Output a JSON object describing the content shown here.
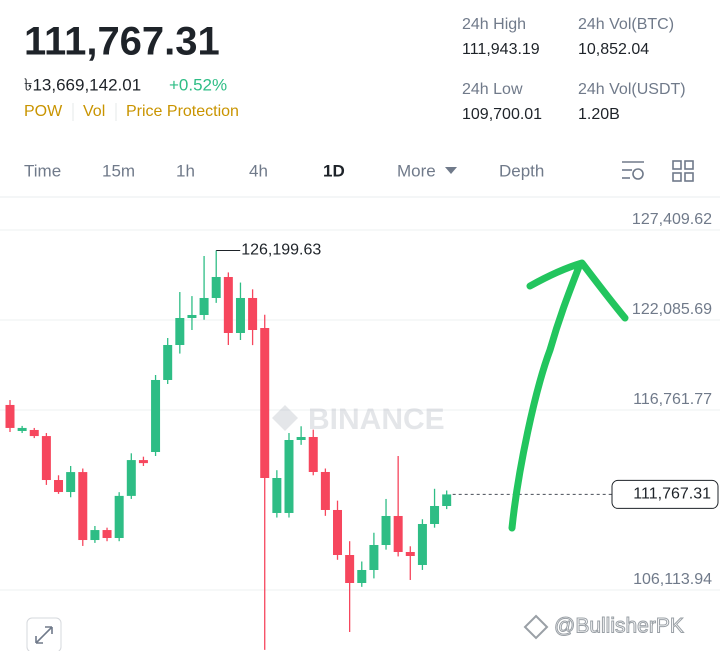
{
  "header": {
    "price": "111,767.31",
    "local_price": "৳13,669,142.01",
    "change": "+0.52%",
    "tags": [
      "POW",
      "Vol",
      "Price Protection"
    ],
    "stats": [
      {
        "label": "24h High",
        "value": "111,943.19"
      },
      {
        "label": "24h Vol(BTC)",
        "value": "10,852.04"
      },
      {
        "label": "24h Low",
        "value": "109,700.01"
      },
      {
        "label": "24h Vol(USDT)",
        "value": "1.20B"
      }
    ]
  },
  "tabs": [
    "Time",
    "15m",
    "1h",
    "4h",
    "1D",
    "More",
    "Depth"
  ],
  "active_tab": "1D",
  "watermark": "BINANCE",
  "credit": "@BullisherPK",
  "chart_data": {
    "type": "candlestick",
    "ylim": [
      102505,
      129362
    ],
    "yticks": [
      {
        "value": 127409.62,
        "label": "127,409.62"
      },
      {
        "value": 122085.69,
        "label": "122,085.69"
      },
      {
        "value": 116761.77,
        "label": "116,761.77"
      },
      {
        "value": 106113.94,
        "label": "106,113.94"
      }
    ],
    "grid": true,
    "up_color": "#2ebd85",
    "down_color": "#f6465d",
    "last_price": {
      "value": 111767.31,
      "label": "111,767.31"
    },
    "high_annotation": {
      "value": 126199.63,
      "label": "126,199.63"
    },
    "open": [
      117060,
      115520,
      115580,
      115220,
      112620,
      111910,
      113090,
      109070,
      109660,
      109190,
      111680,
      113800,
      114277,
      118537,
      120607,
      122204,
      122382,
      123388,
      124630,
      121317,
      123388,
      121612,
      110670,
      110670,
      114987,
      115165,
      113095,
      110847,
      108184,
      106528,
      107297,
      108776,
      110492,
      108362,
      107593,
      110018,
      111083
    ],
    "high": [
      117350,
      115820,
      115700,
      115400,
      112900,
      113450,
      113300,
      109900,
      109800,
      111900,
      114200,
      114000,
      118833,
      121020,
      123740,
      123500,
      125872,
      126199.63,
      124900,
      124300,
      123900,
      122400,
      113200,
      115400,
      115800,
      115600,
      113300,
      111400,
      109000,
      107800,
      109500,
      111500,
      114040,
      108700,
      110300,
      112100,
      112000
    ],
    "low": [
      115460,
      115400,
      115100,
      112330,
      111800,
      111600,
      108720,
      108900,
      109000,
      109000,
      111500,
      113450,
      114040,
      118300,
      120100,
      121494,
      122100,
      123100,
      120607,
      120903,
      120600,
      102570,
      110400,
      110400,
      114700,
      112900,
      110500,
      107900,
      103630,
      106300,
      106800,
      108500,
      108100,
      106706,
      107300,
      109800,
      110900
    ],
    "close": [
      115700,
      115700,
      115220,
      112620,
      111910,
      113090,
      109070,
      109660,
      109190,
      111680,
      113800,
      113620,
      118537,
      120607,
      122204,
      122382,
      123388,
      124630,
      121317,
      123388,
      121494,
      112739,
      112739,
      114987,
      115165,
      113095,
      110847,
      108184,
      106528,
      107297,
      108776,
      110492,
      108362,
      108125,
      110018,
      111083,
      111767.31
    ]
  }
}
